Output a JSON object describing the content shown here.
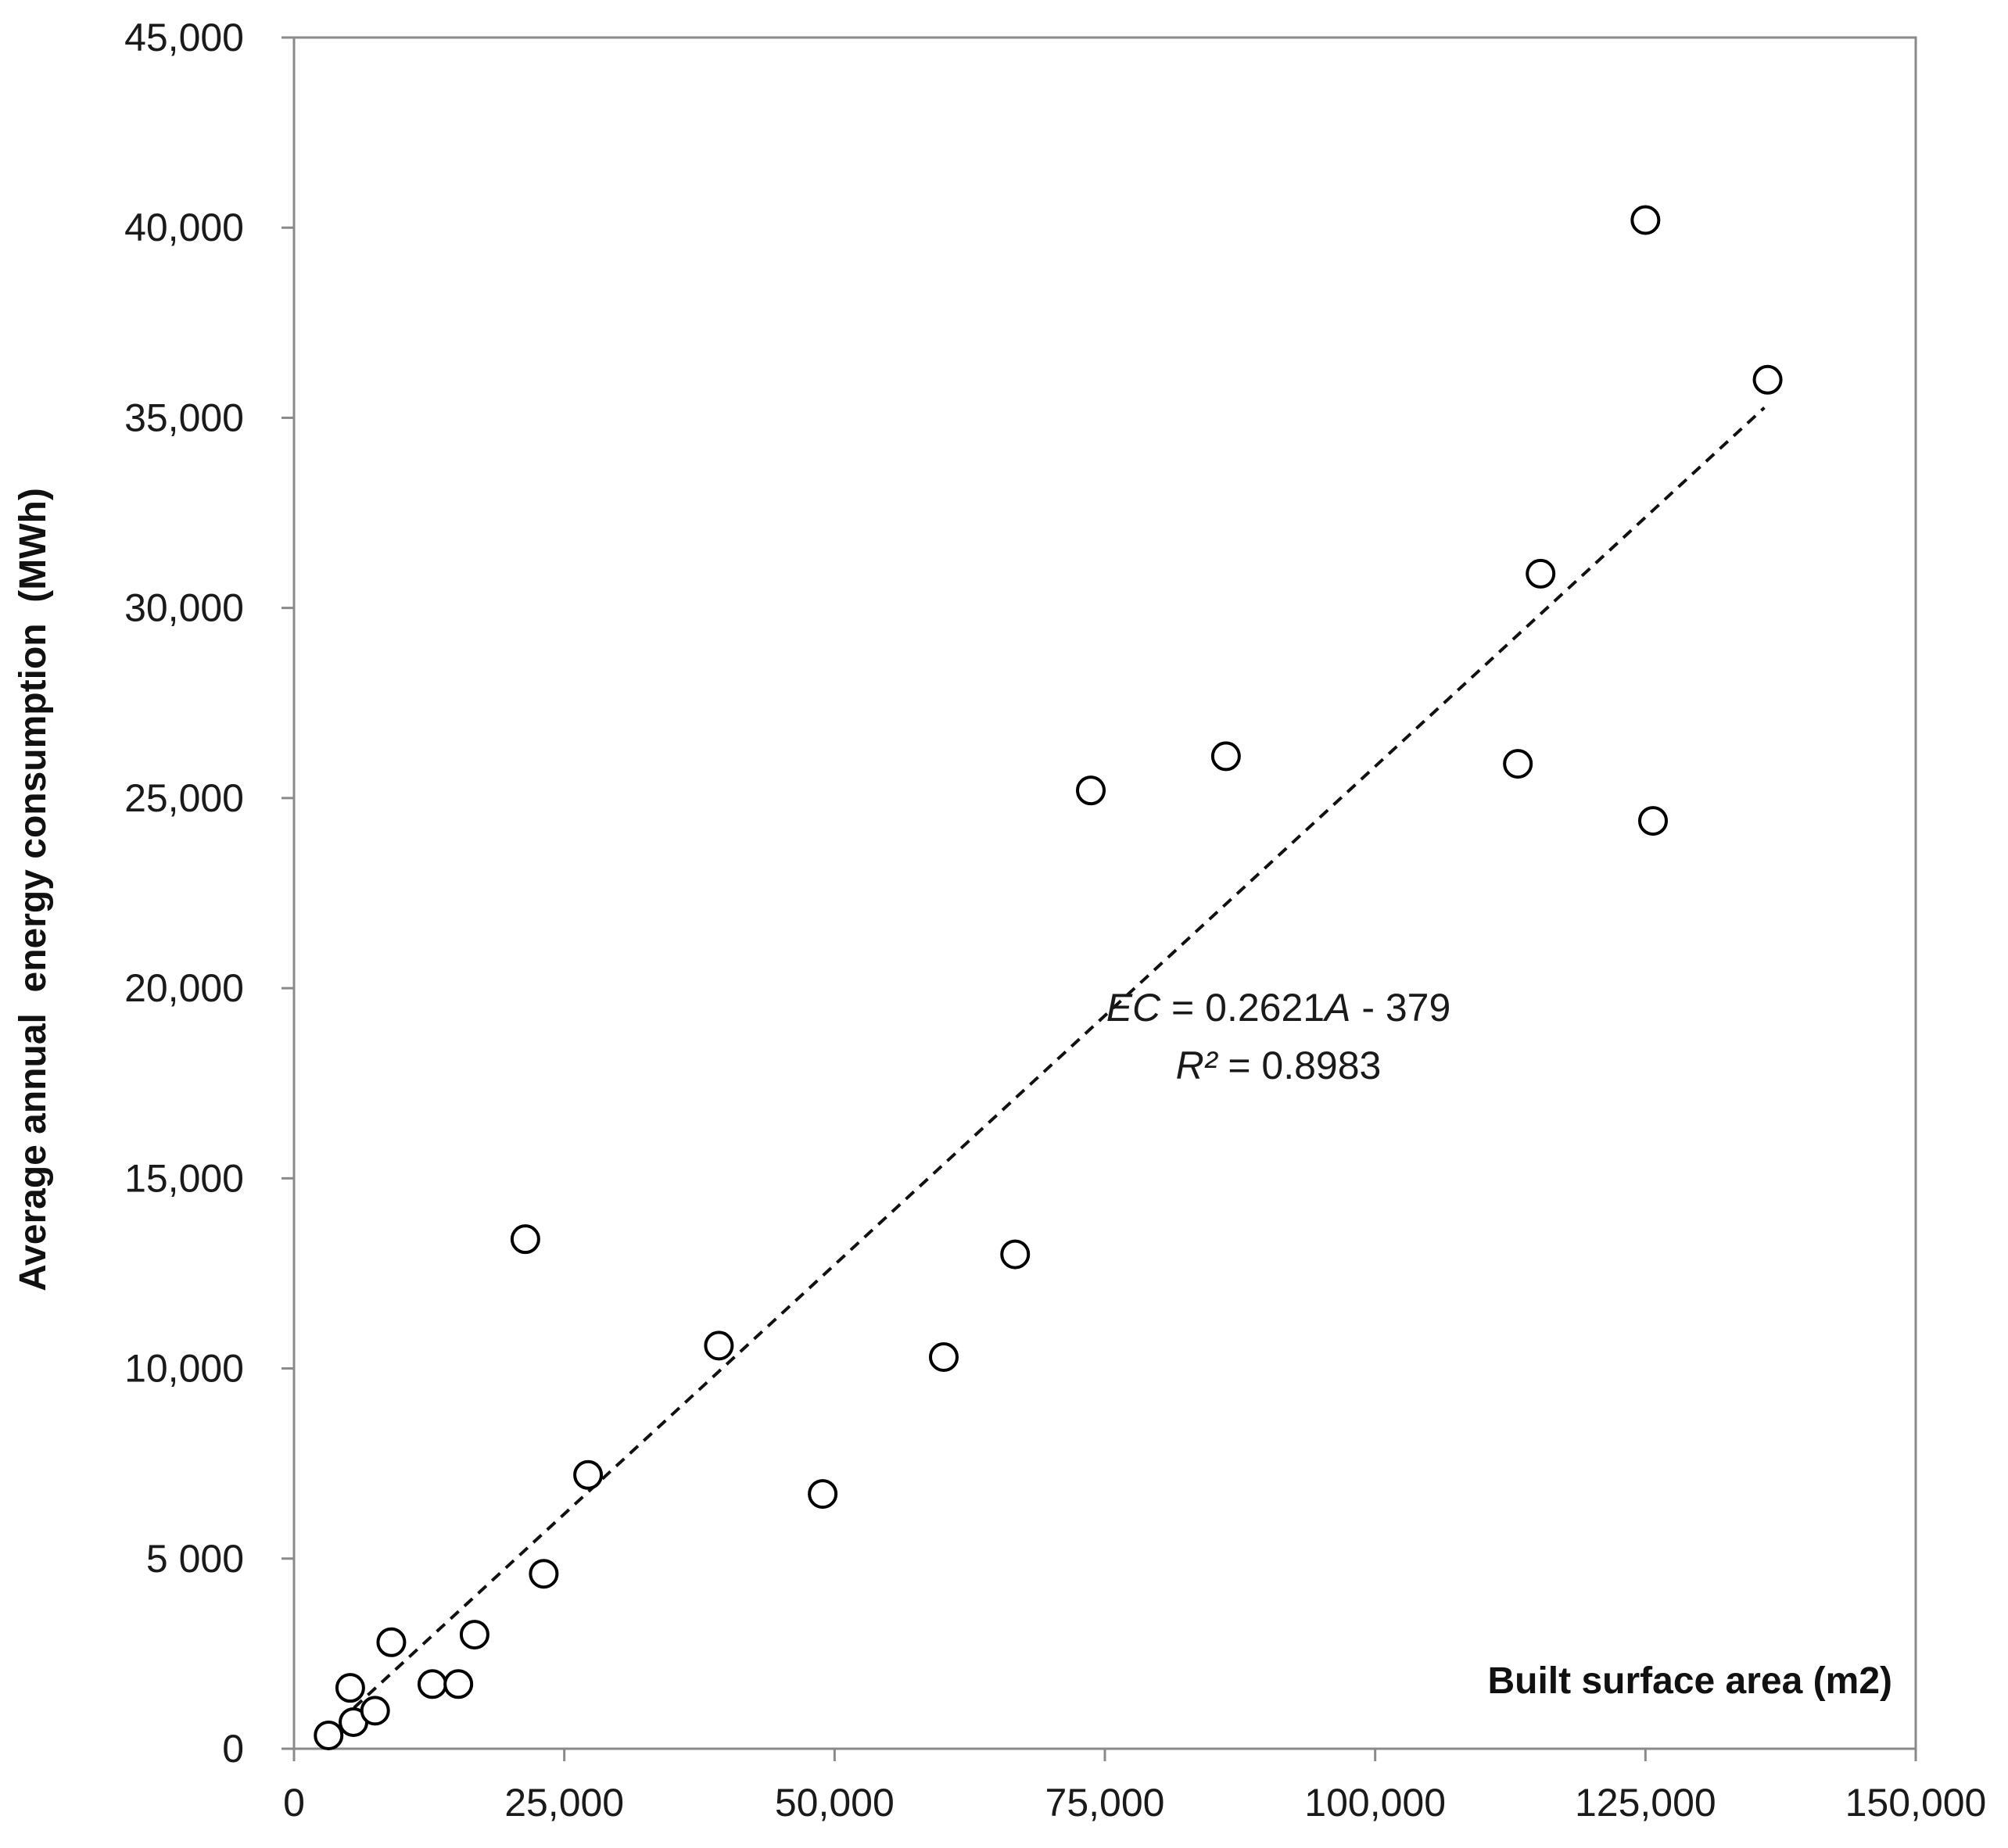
{
  "chart_data": {
    "type": "scatter",
    "title": "",
    "xlabel": "Built surface area (m2)",
    "ylabel": "Average annual  energy consumption  (MWh)",
    "xlim": [
      0,
      150000
    ],
    "ylim": [
      0,
      45000
    ],
    "x_ticks": [
      0,
      25000,
      50000,
      75000,
      100000,
      125000,
      150000
    ],
    "x_tick_labels": [
      "0",
      "25,000",
      "50,000",
      "75,000",
      "100,000",
      "125,000",
      "150,000"
    ],
    "y_ticks": [
      0,
      5000,
      10000,
      15000,
      20000,
      25000,
      30000,
      35000,
      40000,
      45000
    ],
    "y_tick_labels": [
      "0",
      "5 000",
      "10,000",
      "15,000",
      "20,000",
      "25,000",
      "30,000",
      "35,000",
      "40,000",
      "45,000"
    ],
    "grid": false,
    "marker": "open-circle",
    "series": [
      {
        "points": [
          [
            3200,
            350
          ],
          [
            5500,
            700
          ],
          [
            5200,
            1600
          ],
          [
            7500,
            1000
          ],
          [
            9000,
            2800
          ],
          [
            12800,
            1700
          ],
          [
            15200,
            1700
          ],
          [
            16700,
            3000
          ],
          [
            21400,
            13400
          ],
          [
            23100,
            4600
          ],
          [
            27200,
            7200
          ],
          [
            39300,
            10600
          ],
          [
            48900,
            6700
          ],
          [
            60100,
            10300
          ],
          [
            66700,
            13000
          ],
          [
            73700,
            25200
          ],
          [
            86200,
            26100
          ],
          [
            113200,
            25900
          ],
          [
            115300,
            30900
          ],
          [
            125000,
            40200
          ],
          [
            125700,
            24400
          ],
          [
            136300,
            36000
          ]
        ]
      }
    ],
    "trendline": {
      "style": "dashed",
      "slope": 0.2621,
      "intercept": -379,
      "x_range": [
        3000,
        136000
      ]
    },
    "annotation": {
      "equation_prefix": "EC",
      "equation_middle": " = 0.2621",
      "equation_var": "A",
      "equation_suffix": " - 379",
      "r2_prefix": "R²",
      "r2_suffix": " = 0.8983"
    }
  }
}
